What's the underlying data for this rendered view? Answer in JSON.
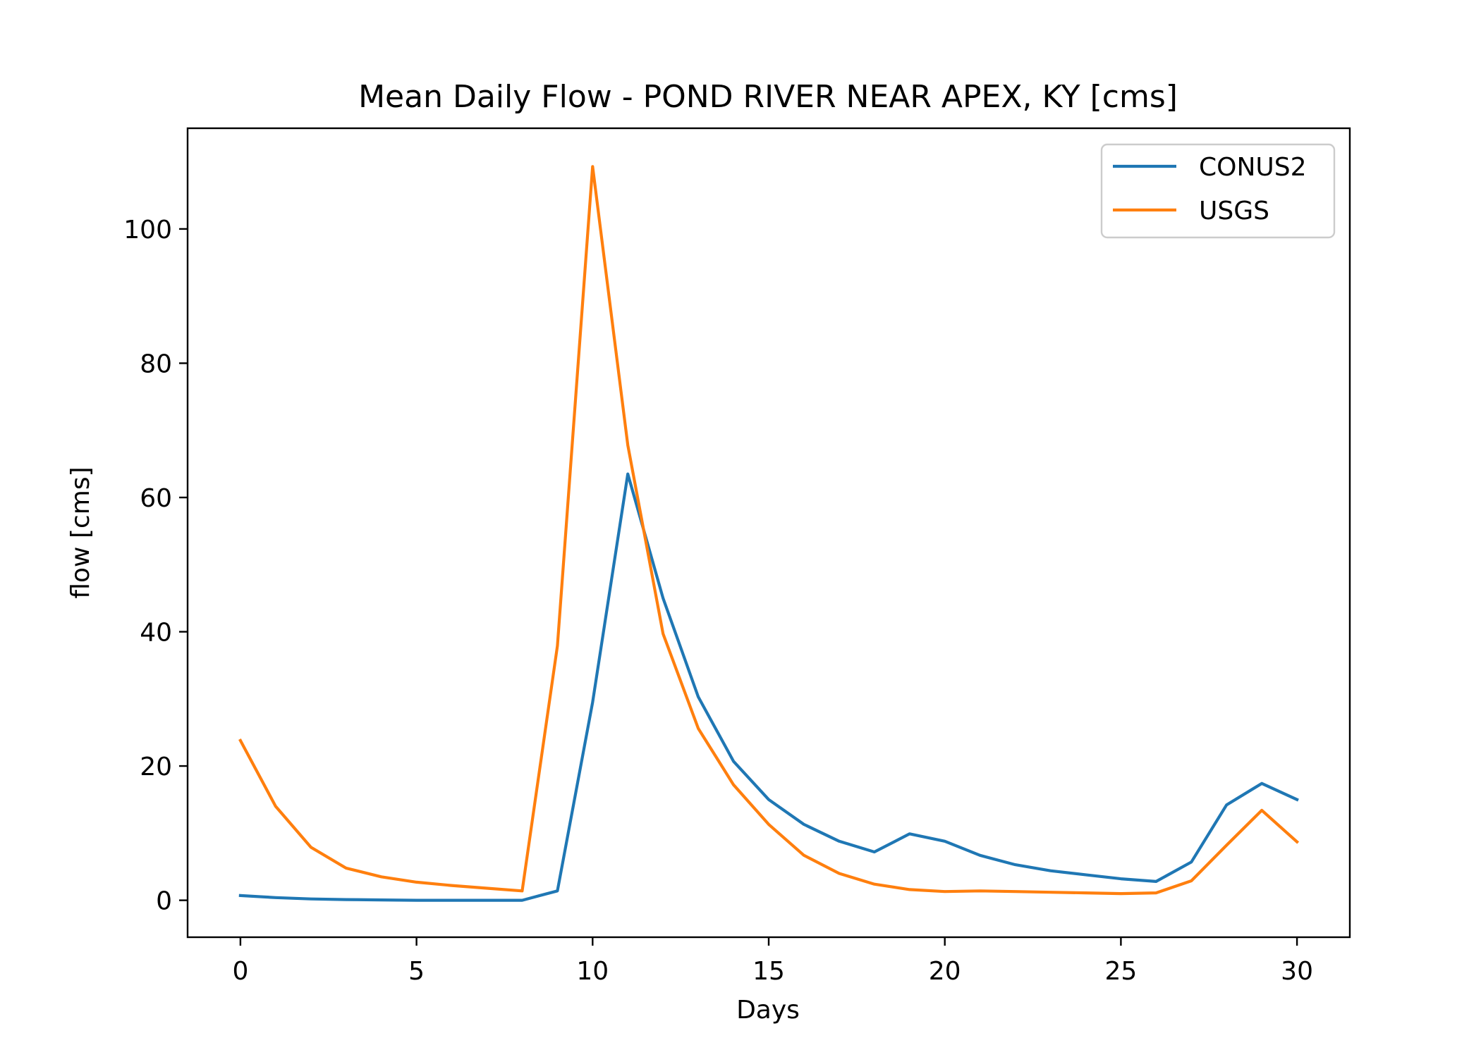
{
  "chart_data": {
    "type": "line",
    "title": "Mean Daily Flow - POND RIVER NEAR APEX, KY [cms]",
    "xlabel": "Days",
    "ylabel": "flow [cms]",
    "xlim": [
      -1.5,
      31.5
    ],
    "ylim": [
      -5.5,
      115
    ],
    "xticks": [
      0,
      5,
      10,
      15,
      20,
      25,
      30
    ],
    "yticks": [
      0,
      20,
      40,
      60,
      80,
      100
    ],
    "grid": false,
    "legend": "top-right",
    "x": [
      0,
      1,
      2,
      3,
      4,
      5,
      6,
      7,
      8,
      9,
      10,
      11,
      12,
      13,
      14,
      15,
      16,
      17,
      18,
      19,
      20,
      21,
      22,
      23,
      24,
      25,
      26,
      27,
      28,
      29,
      30
    ],
    "series": [
      {
        "name": "CONUS2",
        "color": "#1f77b4",
        "values": [
          0.7,
          0.4,
          0.2,
          0.1,
          0.05,
          0.0,
          0.0,
          0.0,
          0.0,
          1.4,
          29.5,
          63.5,
          45.0,
          30.3,
          20.7,
          15.0,
          11.3,
          8.8,
          7.2,
          9.9,
          8.8,
          6.7,
          5.3,
          4.4,
          3.8,
          3.2,
          2.8,
          5.7,
          14.2,
          17.4,
          15.0
        ]
      },
      {
        "name": "USGS",
        "color": "#ff7f0e",
        "values": [
          23.8,
          14.0,
          7.9,
          4.8,
          3.5,
          2.7,
          2.2,
          1.8,
          1.4,
          37.9,
          109.3,
          67.8,
          39.7,
          25.6,
          17.2,
          11.3,
          6.7,
          4.0,
          2.4,
          1.6,
          1.3,
          1.4,
          1.3,
          1.2,
          1.1,
          1.0,
          1.1,
          2.9,
          8.2,
          13.4,
          8.7
        ]
      }
    ]
  }
}
